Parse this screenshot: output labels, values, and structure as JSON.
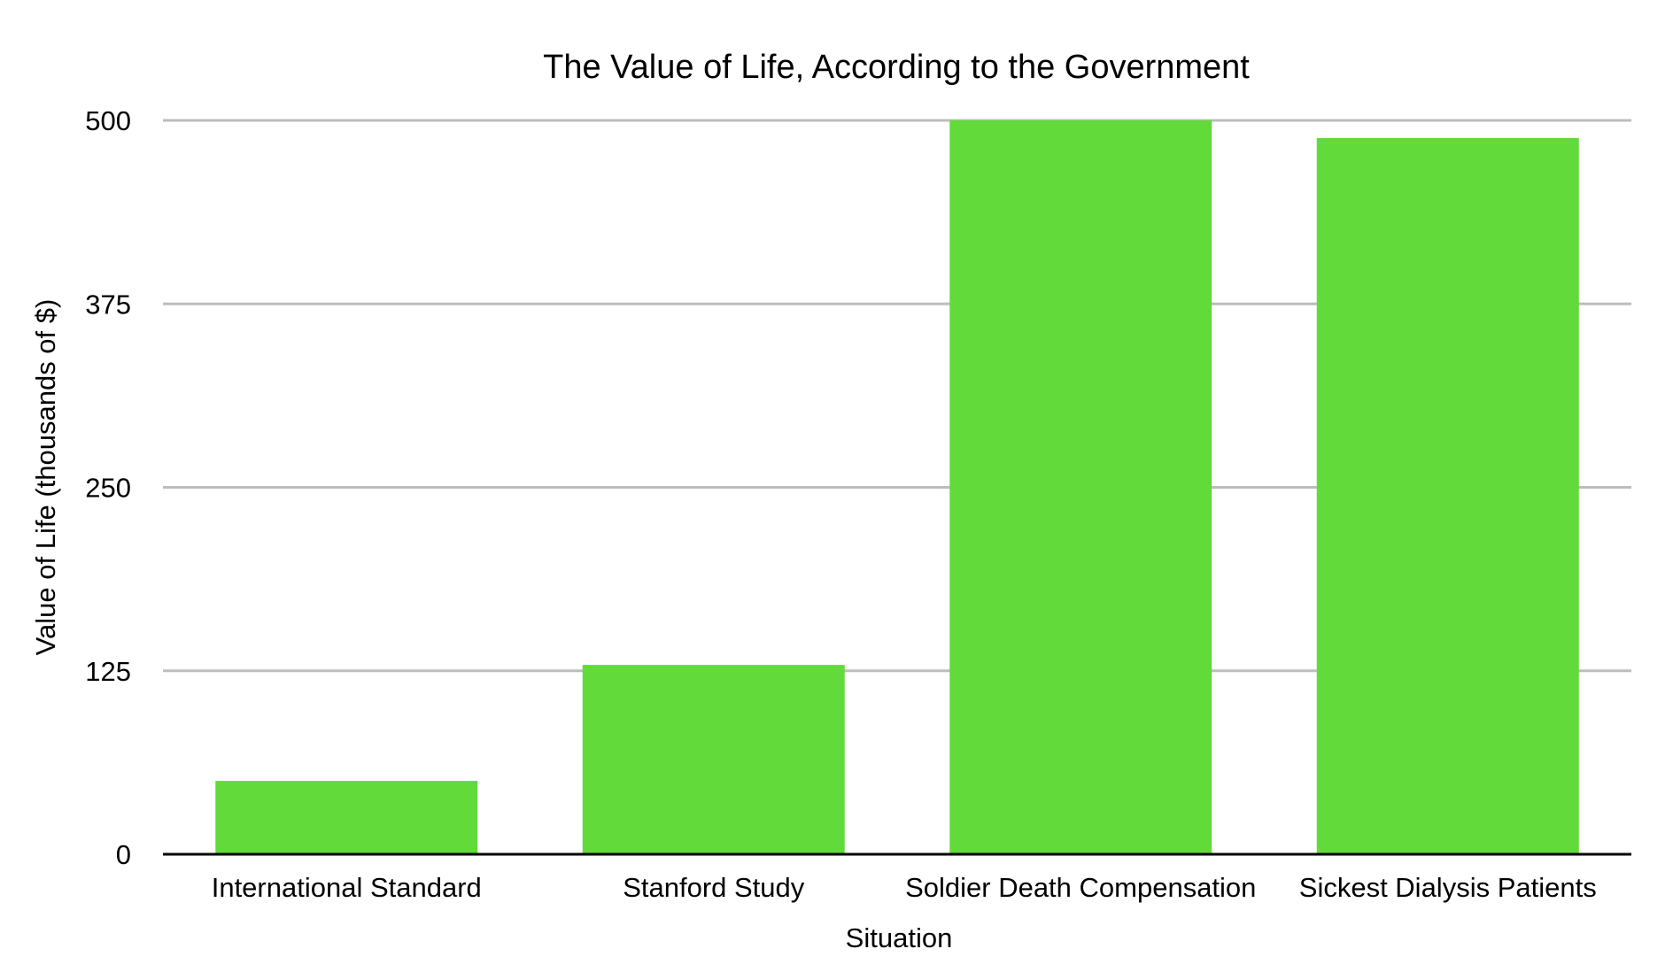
{
  "chart_data": {
    "type": "bar",
    "title": "The Value of Life, According to the Government",
    "xlabel": "Situation",
    "ylabel": "Value of Life (thousands of $)",
    "categories": [
      "International Standard",
      "Stanford Study",
      "Soldier Death Compensation",
      "Sickest Dialysis Patients"
    ],
    "values": [
      50,
      129,
      500,
      488
    ],
    "ylim": [
      0,
      500
    ],
    "yticks": [
      0,
      125,
      250,
      375,
      500
    ],
    "grid": true,
    "legend": "none",
    "bar_color": "#62da39",
    "grid_color": "#bdbdbd",
    "axis_color": "#000000"
  }
}
